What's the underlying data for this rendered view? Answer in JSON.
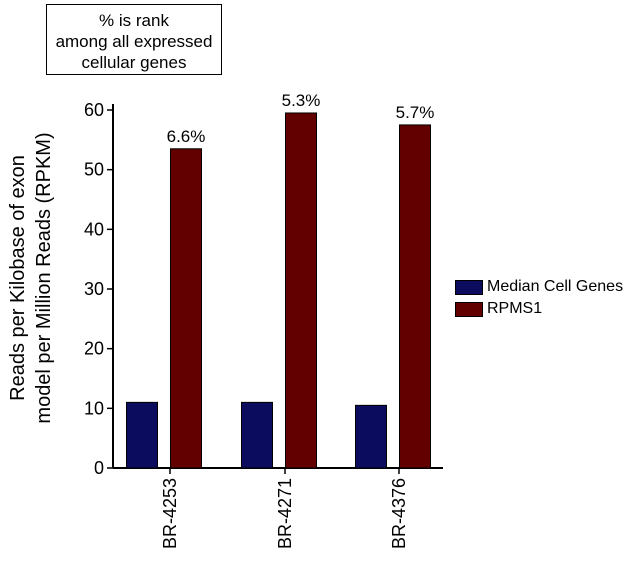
{
  "note": {
    "lines": [
      "% is rank",
      "among all expressed",
      "cellular genes"
    ]
  },
  "chart_data": {
    "type": "bar",
    "categories": [
      "BR-4253",
      "BR-4271",
      "BR-4376"
    ],
    "series": [
      {
        "name": "Median Cell Genes",
        "color": "#0c0c5e",
        "values": [
          11,
          11,
          10.5
        ]
      },
      {
        "name": "RPMS1",
        "color": "#620000",
        "values": [
          53.5,
          59.5,
          57.5
        ],
        "data_labels": [
          "6.6%",
          "5.3%",
          "5.7%"
        ]
      }
    ],
    "ylabel": [
      "Reads per Kilobase of exon",
      "model per Million Reads (RPKM)"
    ],
    "yticks": [
      0,
      10,
      20,
      30,
      40,
      50,
      60
    ],
    "ylim": [
      0,
      60
    ],
    "legend": "right",
    "grid": false
  }
}
